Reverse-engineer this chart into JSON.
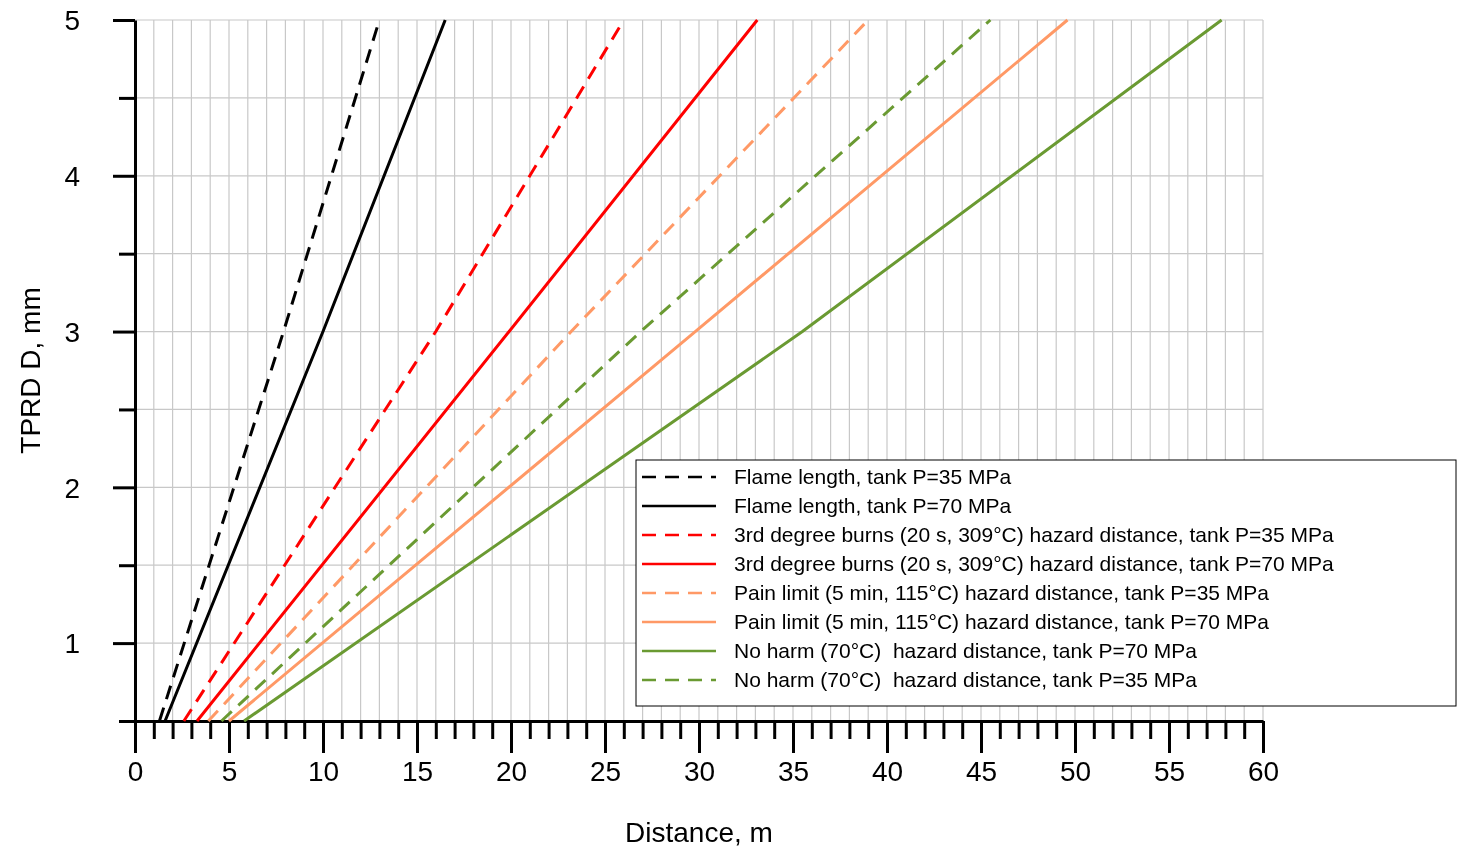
{
  "chart_data": {
    "type": "line",
    "xlabel": "Distance, m",
    "ylabel": "TPRD D, mm",
    "xlim": [
      0,
      60
    ],
    "ylim": [
      0.5,
      5
    ],
    "xticks": [
      0,
      {
        "value": 1,
        "label": null
      },
      {
        "value": 2,
        "label": null
      },
      {
        "value": 3,
        "label": null
      },
      {
        "value": 4,
        "label": null
      },
      5,
      {
        "value": 6,
        "label": null
      },
      {
        "value": 7,
        "label": null
      },
      {
        "value": 8,
        "label": null
      },
      {
        "value": 9,
        "label": null
      },
      10,
      {
        "value": 11,
        "label": null
      },
      {
        "value": 12,
        "label": null
      },
      {
        "value": 13,
        "label": null
      },
      {
        "value": 14,
        "label": null
      },
      15,
      {
        "value": 16,
        "label": null
      },
      {
        "value": 17,
        "label": null
      },
      {
        "value": 18,
        "label": null
      },
      {
        "value": 19,
        "label": null
      },
      20,
      {
        "value": 21,
        "label": null
      },
      {
        "value": 22,
        "label": null
      },
      {
        "value": 23,
        "label": null
      },
      {
        "value": 24,
        "label": null
      },
      25,
      {
        "value": 26,
        "label": null
      },
      {
        "value": 27,
        "label": null
      },
      {
        "value": 28,
        "label": null
      },
      {
        "value": 29,
        "label": null
      },
      30,
      {
        "value": 31,
        "label": null
      },
      {
        "value": 32,
        "label": null
      },
      {
        "value": 33,
        "label": null
      },
      {
        "value": 34,
        "label": null
      },
      35,
      {
        "value": 36,
        "label": null
      },
      {
        "value": 37,
        "label": null
      },
      {
        "value": 38,
        "label": null
      },
      {
        "value": 39,
        "label": null
      },
      40,
      {
        "value": 41,
        "label": null
      },
      {
        "value": 42,
        "label": null
      },
      {
        "value": 43,
        "label": null
      },
      {
        "value": 44,
        "label": null
      },
      45,
      {
        "value": 46,
        "label": null
      },
      {
        "value": 47,
        "label": null
      },
      {
        "value": 48,
        "label": null
      },
      {
        "value": 49,
        "label": null
      },
      50,
      {
        "value": 51,
        "label": null
      },
      {
        "value": 52,
        "label": null
      },
      {
        "value": 53,
        "label": null
      },
      {
        "value": 54,
        "label": null
      },
      55,
      {
        "value": 56,
        "label": null
      },
      {
        "value": 57,
        "label": null
      },
      {
        "value": 58,
        "label": null
      },
      {
        "value": 59,
        "label": null
      },
      60
    ],
    "yticks": [
      {
        "value": 0.5,
        "label": null
      },
      1,
      {
        "value": 1.5,
        "label": null
      },
      2,
      {
        "value": 2.5,
        "label": null
      },
      3,
      {
        "value": 3.5,
        "label": null
      },
      4,
      {
        "value": 4.5,
        "label": null
      },
      5
    ],
    "grid": true,
    "legend": "bottom right",
    "series": [
      {
        "name": "Flame length, tank P=35 MPa",
        "color": "#000000",
        "line_style": "dashed",
        "x": [
          1.3,
          7.9,
          13.0
        ],
        "values": [
          0.5,
          3,
          5
        ]
      },
      {
        "name": "Flame length, tank P=70 MPa",
        "color": "#000000",
        "line_style": "solid",
        "x": [
          1.6,
          10.0,
          16.5
        ],
        "values": [
          0.5,
          3,
          5
        ]
      },
      {
        "name": "3rd degree burns (20 s, 309°C) hazard distance, tank P=35 MPa",
        "color": "#ff0000",
        "line_style": "dashed",
        "x": [
          2.6,
          16.0,
          26.0
        ],
        "values": [
          0.5,
          3,
          5
        ]
      },
      {
        "name": "3rd degree burns (20 s, 309°C) hazard distance, tank P=70 MPa",
        "color": "#ff0000",
        "line_style": "solid",
        "x": [
          3.3,
          19.9,
          33.1
        ],
        "values": [
          0.5,
          3,
          5
        ]
      },
      {
        "name": "Pain limit (5 min, 115°C) hazard distance, tank P=35 MPa",
        "color": "#ff9966",
        "line_style": "dashed",
        "x": [
          3.9,
          23.2,
          39.0
        ],
        "values": [
          0.5,
          3,
          5
        ]
      },
      {
        "name": "Pain limit (5 min, 115°C) hazard distance, tank P=70 MPa",
        "color": "#ff9966",
        "line_style": "solid",
        "x": [
          5.0,
          29.8,
          49.6
        ],
        "values": [
          0.5,
          3,
          5
        ]
      },
      {
        "name": "No harm (70°C)  hazard distance, tank P=70 MPa",
        "color": "#6a9a32",
        "line_style": "solid",
        "x": [
          5.8,
          35.5,
          57.8
        ],
        "values": [
          0.5,
          3,
          5
        ]
      },
      {
        "name": "No harm (70°C)  hazard distance, tank P=35 MPa",
        "color": "#6a9a32",
        "line_style": "dashed",
        "x": [
          4.6,
          26.9,
          45.5
        ],
        "values": [
          0.5,
          3,
          5
        ]
      }
    ]
  }
}
